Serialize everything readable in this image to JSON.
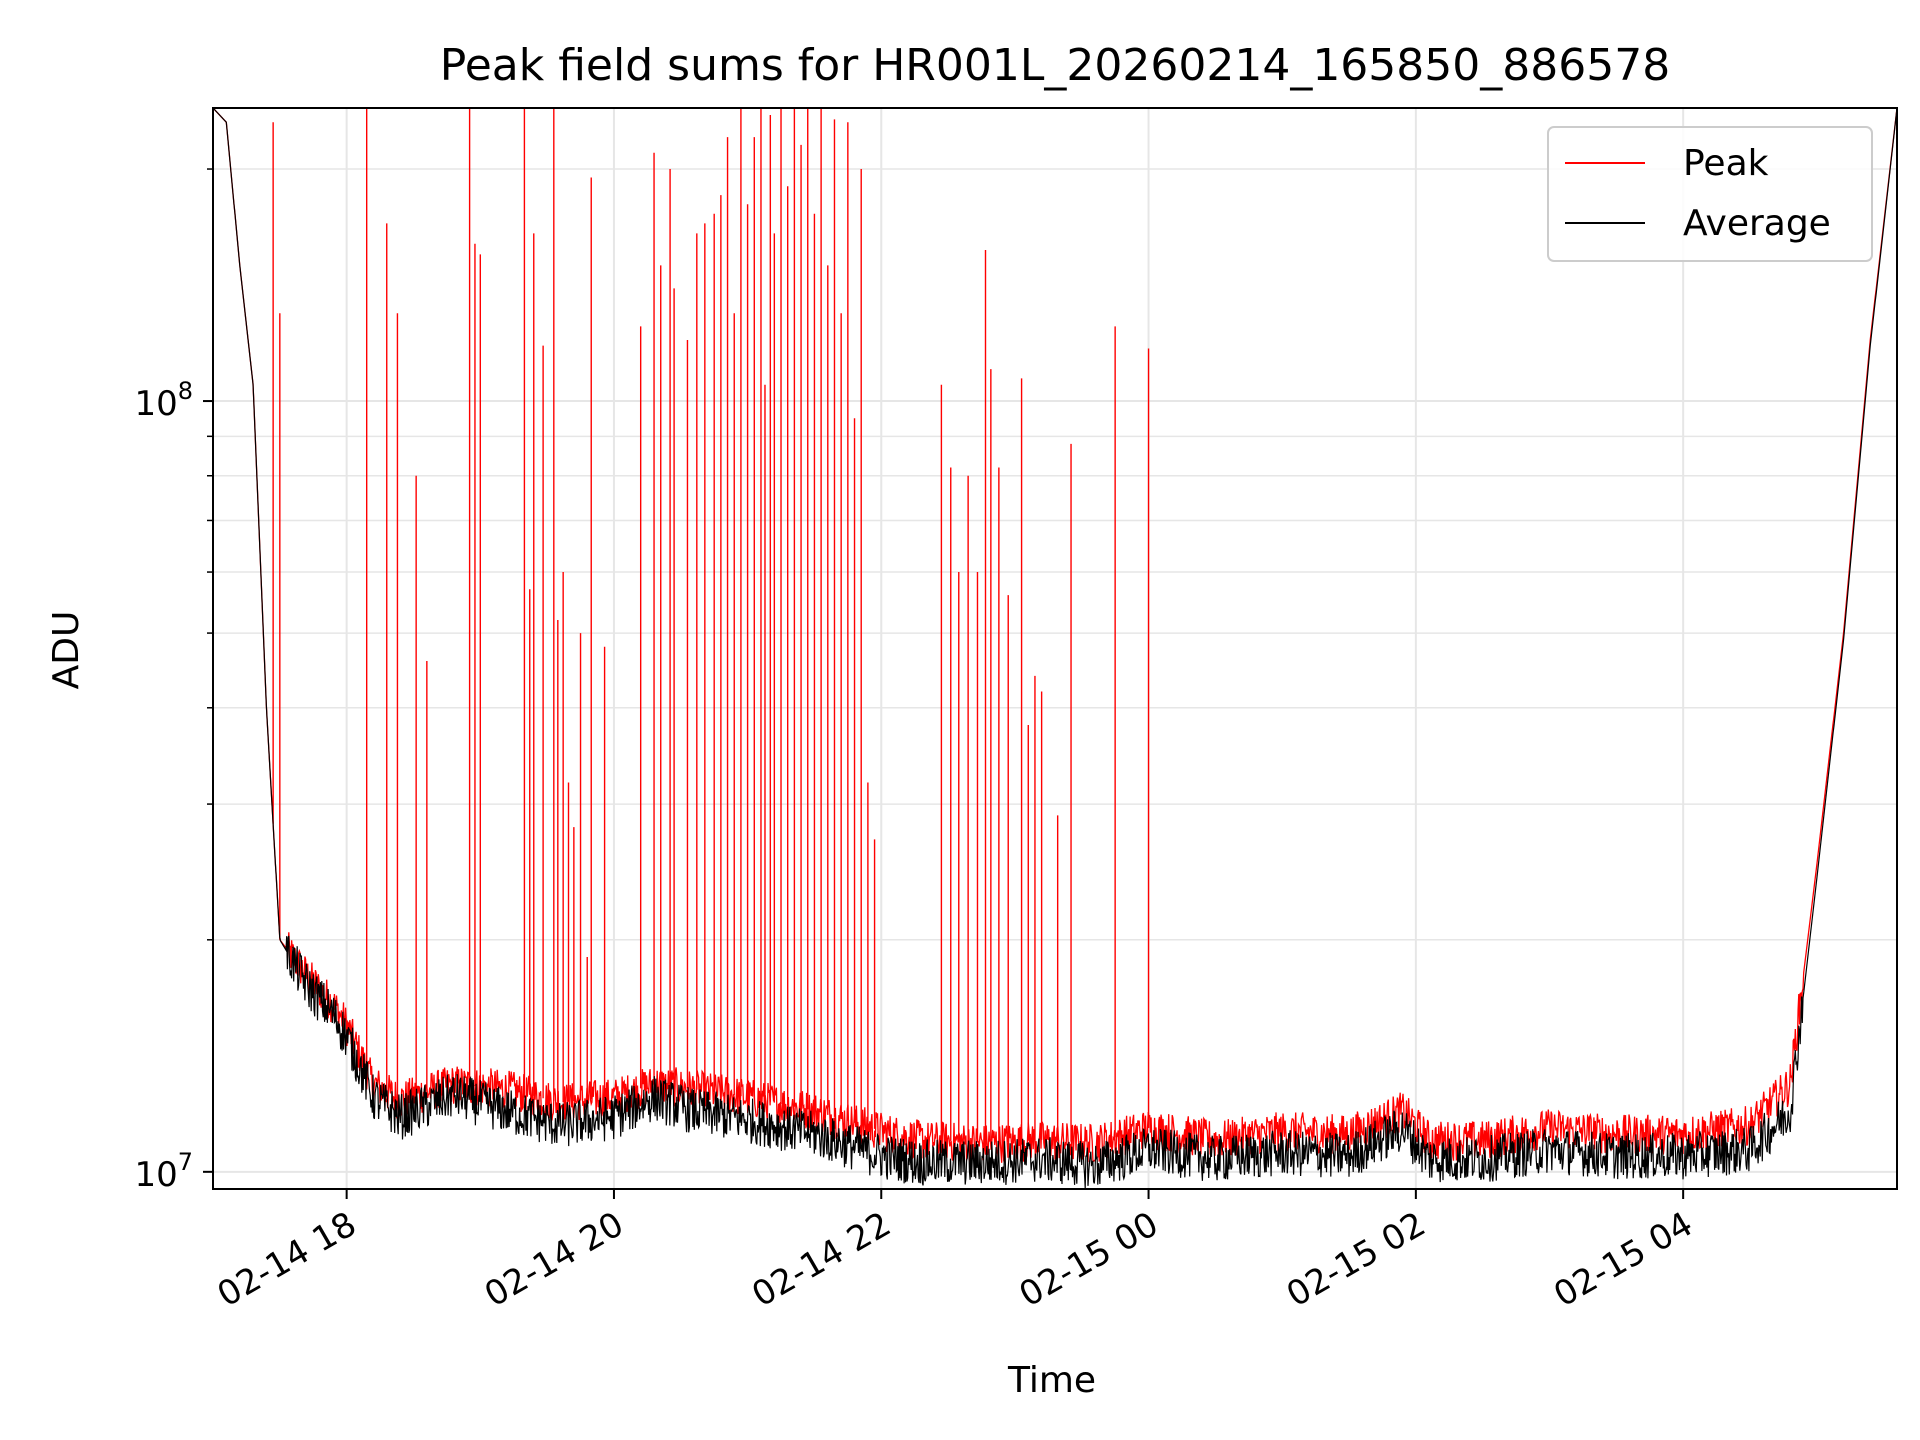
{
  "chart_data": {
    "type": "line",
    "title": "Peak field sums for HR001L_20260214_165850_886578",
    "xlabel": "Time",
    "ylabel": "ADU",
    "yscale": "log",
    "ylim": [
      9500000,
      240000000
    ],
    "xlim_hours": [
      17.0,
      29.6
    ],
    "grid": true,
    "legend_position": "top-right",
    "x_ticks": [
      {
        "hour": 18,
        "label": "02-14 18"
      },
      {
        "hour": 20,
        "label": "02-14 20"
      },
      {
        "hour": 22,
        "label": "02-14 22"
      },
      {
        "hour": 24,
        "label": "02-15 00"
      },
      {
        "hour": 26,
        "label": "02-15 02"
      },
      {
        "hour": 28,
        "label": "02-15 04"
      }
    ],
    "y_major_ticks": [
      {
        "value": 10000000,
        "base": "10",
        "exp": "7"
      },
      {
        "value": 100000000,
        "base": "10",
        "exp": "8"
      }
    ],
    "series": [
      {
        "name": "Peak",
        "color": "#ff0000",
        "baseline": [
          [
            17.0,
            240000000
          ],
          [
            17.1,
            230000000
          ],
          [
            17.2,
            150000000
          ],
          [
            17.3,
            105000000
          ],
          [
            17.4,
            40000000
          ],
          [
            17.5,
            20000000
          ],
          [
            17.7,
            18000000
          ],
          [
            17.9,
            16500000
          ],
          [
            18.0,
            15500000
          ],
          [
            18.2,
            13000000
          ],
          [
            18.4,
            12400000
          ],
          [
            18.8,
            13000000
          ],
          [
            19.2,
            12800000
          ],
          [
            19.6,
            12300000
          ],
          [
            20.0,
            12500000
          ],
          [
            20.3,
            13000000
          ],
          [
            20.6,
            12800000
          ],
          [
            21.0,
            12500000
          ],
          [
            21.5,
            12000000
          ],
          [
            22.0,
            11300000
          ],
          [
            22.3,
            11000000
          ],
          [
            22.8,
            10900000
          ],
          [
            23.2,
            11000000
          ],
          [
            23.6,
            10900000
          ],
          [
            24.0,
            11400000
          ],
          [
            24.5,
            11000000
          ],
          [
            25.0,
            11300000
          ],
          [
            25.5,
            11200000
          ],
          [
            25.9,
            12000000
          ],
          [
            26.1,
            11000000
          ],
          [
            26.5,
            11000000
          ],
          [
            27.0,
            11400000
          ],
          [
            27.5,
            11200000
          ],
          [
            28.0,
            11200000
          ],
          [
            28.5,
            11500000
          ],
          [
            28.8,
            13000000
          ],
          [
            29.0,
            25000000
          ],
          [
            29.2,
            50000000
          ],
          [
            29.4,
            120000000
          ],
          [
            29.6,
            240000000
          ]
        ],
        "spikes": [
          [
            17.45,
            230000000
          ],
          [
            17.5,
            130000000
          ],
          [
            18.15,
            240000000
          ],
          [
            18.3,
            170000000
          ],
          [
            18.38,
            130000000
          ],
          [
            18.52,
            80000000
          ],
          [
            18.6,
            46000000
          ],
          [
            18.92,
            240000000
          ],
          [
            18.96,
            160000000
          ],
          [
            19.0,
            155000000
          ],
          [
            19.33,
            240000000
          ],
          [
            19.37,
            57000000
          ],
          [
            19.4,
            165000000
          ],
          [
            19.47,
            118000000
          ],
          [
            19.55,
            240000000
          ],
          [
            19.58,
            52000000
          ],
          [
            19.62,
            60000000
          ],
          [
            19.66,
            32000000
          ],
          [
            19.7,
            28000000
          ],
          [
            19.75,
            50000000
          ],
          [
            19.8,
            19000000
          ],
          [
            19.83,
            195000000
          ],
          [
            19.93,
            48000000
          ],
          [
            20.2,
            125000000
          ],
          [
            20.3,
            210000000
          ],
          [
            20.35,
            150000000
          ],
          [
            20.42,
            200000000
          ],
          [
            20.45,
            140000000
          ],
          [
            20.55,
            120000000
          ],
          [
            20.62,
            165000000
          ],
          [
            20.68,
            170000000
          ],
          [
            20.75,
            175000000
          ],
          [
            20.8,
            185000000
          ],
          [
            20.85,
            220000000
          ],
          [
            20.9,
            130000000
          ],
          [
            20.95,
            240000000
          ],
          [
            21.0,
            180000000
          ],
          [
            21.05,
            220000000
          ],
          [
            21.1,
            240000000
          ],
          [
            21.13,
            105000000
          ],
          [
            21.17,
            235000000
          ],
          [
            21.2,
            165000000
          ],
          [
            21.25,
            240000000
          ],
          [
            21.3,
            190000000
          ],
          [
            21.35,
            240000000
          ],
          [
            21.4,
            215000000
          ],
          [
            21.45,
            240000000
          ],
          [
            21.5,
            175000000
          ],
          [
            21.55,
            240000000
          ],
          [
            21.6,
            150000000
          ],
          [
            21.65,
            232000000
          ],
          [
            21.7,
            130000000
          ],
          [
            21.75,
            230000000
          ],
          [
            21.8,
            95000000
          ],
          [
            21.85,
            200000000
          ],
          [
            21.9,
            32000000
          ],
          [
            21.95,
            27000000
          ],
          [
            22.45,
            105000000
          ],
          [
            22.52,
            82000000
          ],
          [
            22.58,
            60000000
          ],
          [
            22.65,
            80000000
          ],
          [
            22.72,
            60000000
          ],
          [
            22.78,
            157000000
          ],
          [
            22.82,
            110000000
          ],
          [
            22.88,
            82000000
          ],
          [
            22.95,
            56000000
          ],
          [
            23.05,
            107000000
          ],
          [
            23.1,
            38000000
          ],
          [
            23.15,
            44000000
          ],
          [
            23.2,
            42000000
          ],
          [
            23.32,
            29000000
          ],
          [
            23.42,
            88000000
          ],
          [
            23.75,
            125000000
          ],
          [
            24.0,
            117000000
          ]
        ]
      },
      {
        "name": "Average",
        "color": "#000000",
        "baseline": [
          [
            17.0,
            240000000
          ],
          [
            17.1,
            230000000
          ],
          [
            17.2,
            150000000
          ],
          [
            17.3,
            105000000
          ],
          [
            17.4,
            40000000
          ],
          [
            17.5,
            20000000
          ],
          [
            17.7,
            17500000
          ],
          [
            17.9,
            16000000
          ],
          [
            18.0,
            15000000
          ],
          [
            18.2,
            12500000
          ],
          [
            18.4,
            11800000
          ],
          [
            18.8,
            12600000
          ],
          [
            19.2,
            12000000
          ],
          [
            19.6,
            11500000
          ],
          [
            20.0,
            11800000
          ],
          [
            20.3,
            12500000
          ],
          [
            20.6,
            12000000
          ],
          [
            21.0,
            11700000
          ],
          [
            21.5,
            11200000
          ],
          [
            22.0,
            10500000
          ],
          [
            22.3,
            10300000
          ],
          [
            22.8,
            10300000
          ],
          [
            23.2,
            10400000
          ],
          [
            23.6,
            10200000
          ],
          [
            24.0,
            10700000
          ],
          [
            24.5,
            10400000
          ],
          [
            25.0,
            10600000
          ],
          [
            25.5,
            10500000
          ],
          [
            25.9,
            11400000
          ],
          [
            26.1,
            10400000
          ],
          [
            26.5,
            10400000
          ],
          [
            27.0,
            10700000
          ],
          [
            27.5,
            10500000
          ],
          [
            28.0,
            10500000
          ],
          [
            28.5,
            10700000
          ],
          [
            28.8,
            12000000
          ],
          [
            29.0,
            24000000
          ],
          [
            29.2,
            49000000
          ],
          [
            29.4,
            118000000
          ],
          [
            29.6,
            240000000
          ]
        ]
      }
    ]
  }
}
